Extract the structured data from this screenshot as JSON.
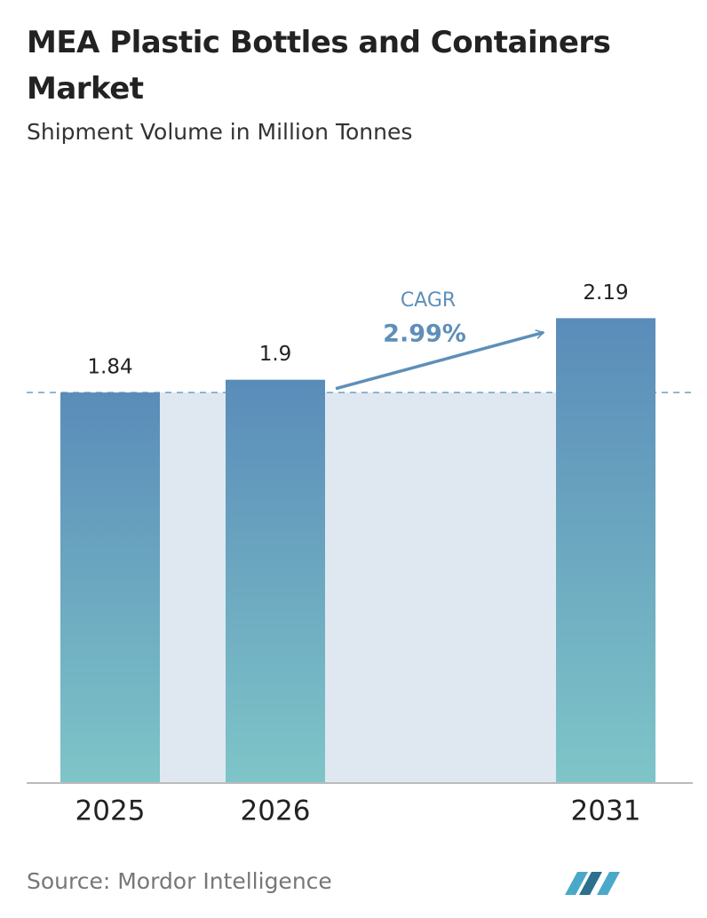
{
  "chart_data": {
    "type": "bar",
    "title": "MEA Plastic Bottles and Containers Market",
    "subtitle": "Shipment Volume in Million Tonnes",
    "categories": [
      "2025",
      "2026",
      "2031"
    ],
    "values": [
      1.84,
      1.9,
      2.19
    ],
    "ylim": [
      0,
      2.2
    ],
    "annotations": [
      "CAGR",
      "2.99%"
    ],
    "source": "Source: Mordor Intelligence"
  }
}
